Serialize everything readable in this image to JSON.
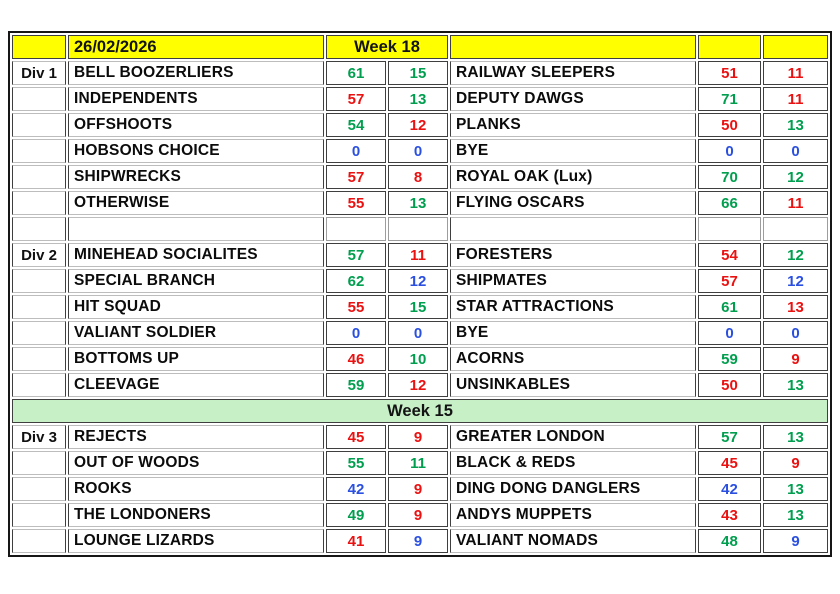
{
  "title": "League results sheet",
  "colors": {
    "win": "#009e4e",
    "loss": "#ea1111",
    "draw": "#2b50e0",
    "header_bg": "#ffff00",
    "banner_bg": "#c7f0c7",
    "grid_dark": "#3f3f3f",
    "grid_light": "#bdbdbd"
  },
  "header": {
    "date": "26/02/2026",
    "week": "Week 18"
  },
  "rows": [
    {
      "type": "match",
      "d": "Div 1",
      "home": "BELL BOOZERLIERS",
      "h1": "61",
      "h1c": "win",
      "h2": "15",
      "h2c": "win",
      "away": "RAILWAY SLEEPERS",
      "a1": "51",
      "a1c": "loss",
      "a2": "11",
      "a2c": "loss"
    },
    {
      "type": "match",
      "d": "",
      "home": "INDEPENDENTS",
      "h1": "57",
      "h1c": "loss",
      "h2": "13",
      "h2c": "win",
      "away": "DEPUTY DAWGS",
      "a1": "71",
      "a1c": "win",
      "a2": "11",
      "a2c": "loss"
    },
    {
      "type": "match",
      "d": "",
      "home": "OFFSHOOTS",
      "h1": "54",
      "h1c": "win",
      "h2": "12",
      "h2c": "loss",
      "away": "PLANKS",
      "a1": "50",
      "a1c": "loss",
      "a2": "13",
      "a2c": "win"
    },
    {
      "type": "match",
      "d": "",
      "home": "HOBSONS CHOICE",
      "h1": "0",
      "h1c": "draw",
      "h2": "0",
      "h2c": "draw",
      "away": "BYE",
      "a1": "0",
      "a1c": "draw",
      "a2": "0",
      "a2c": "draw"
    },
    {
      "type": "match",
      "d": "",
      "home": "SHIPWRECKS",
      "h1": "57",
      "h1c": "loss",
      "h2": "8",
      "h2c": "loss",
      "away": "ROYAL OAK (Lux)",
      "a1": "70",
      "a1c": "win",
      "a2": "12",
      "a2c": "win"
    },
    {
      "type": "match",
      "d": "",
      "home": "OTHERWISE",
      "h1": "55",
      "h1c": "loss",
      "h2": "13",
      "h2c": "win",
      "away": "FLYING OSCARS",
      "a1": "66",
      "a1c": "win",
      "a2": "11",
      "a2c": "loss"
    },
    {
      "type": "spacer"
    },
    {
      "type": "match",
      "d": "Div 2",
      "home": "MINEHEAD SOCIALITES",
      "h1": "57",
      "h1c": "win",
      "h2": "11",
      "h2c": "loss",
      "away": "FORESTERS",
      "a1": "54",
      "a1c": "loss",
      "a2": "12",
      "a2c": "win"
    },
    {
      "type": "match",
      "d": "",
      "home": "SPECIAL BRANCH",
      "h1": "62",
      "h1c": "win",
      "h2": "12",
      "h2c": "draw",
      "away": "SHIPMATES",
      "a1": "57",
      "a1c": "loss",
      "a2": "12",
      "a2c": "draw"
    },
    {
      "type": "match",
      "d": "",
      "home": "HIT SQUAD",
      "h1": "55",
      "h1c": "loss",
      "h2": "15",
      "h2c": "win",
      "away": "STAR ATTRACTIONS",
      "a1": "61",
      "a1c": "win",
      "a2": "13",
      "a2c": "loss"
    },
    {
      "type": "match",
      "d": "",
      "home": "VALIANT SOLDIER",
      "h1": "0",
      "h1c": "draw",
      "h2": "0",
      "h2c": "draw",
      "away": "BYE",
      "a1": "0",
      "a1c": "draw",
      "a2": "0",
      "a2c": "draw"
    },
    {
      "type": "match",
      "d": "",
      "home": "BOTTOMS UP",
      "h1": "46",
      "h1c": "loss",
      "h2": "10",
      "h2c": "win",
      "away": "ACORNS",
      "a1": "59",
      "a1c": "win",
      "a2": "9",
      "a2c": "loss"
    },
    {
      "type": "match",
      "d": "",
      "home": "CLEEVAGE",
      "h1": "59",
      "h1c": "win",
      "h2": "12",
      "h2c": "loss",
      "away": "UNSINKABLES",
      "a1": "50",
      "a1c": "loss",
      "a2": "13",
      "a2c": "win"
    },
    {
      "type": "banner",
      "label": "Week 15"
    },
    {
      "type": "match",
      "d": "Div 3",
      "home": "REJECTS",
      "h1": "45",
      "h1c": "loss",
      "h2": "9",
      "h2c": "loss",
      "away": "GREATER LONDON",
      "a1": "57",
      "a1c": "win",
      "a2": "13",
      "a2c": "win"
    },
    {
      "type": "match",
      "d": "",
      "home": "OUT OF WOODS",
      "h1": "55",
      "h1c": "win",
      "h2": "11",
      "h2c": "win",
      "away": "BLACK & REDS",
      "a1": "45",
      "a1c": "loss",
      "a2": "9",
      "a2c": "loss"
    },
    {
      "type": "match",
      "d": "",
      "home": "ROOKS",
      "h1": "42",
      "h1c": "draw",
      "h2": "9",
      "h2c": "loss",
      "away": "DING DONG DANGLERS",
      "a1": "42",
      "a1c": "draw",
      "a2": "13",
      "a2c": "win"
    },
    {
      "type": "match",
      "d": "",
      "home": "THE LONDONERS",
      "h1": "49",
      "h1c": "win",
      "h2": "9",
      "h2c": "loss",
      "away": "ANDYS MUPPETS",
      "a1": "43",
      "a1c": "loss",
      "a2": "13",
      "a2c": "win"
    },
    {
      "type": "match",
      "d": "",
      "home": "LOUNGE LIZARDS",
      "h1": "41",
      "h1c": "loss",
      "h2": "9",
      "h2c": "draw",
      "away": "VALIANT NOMADS",
      "a1": "48",
      "a1c": "win",
      "a2": "9",
      "a2c": "draw"
    }
  ]
}
